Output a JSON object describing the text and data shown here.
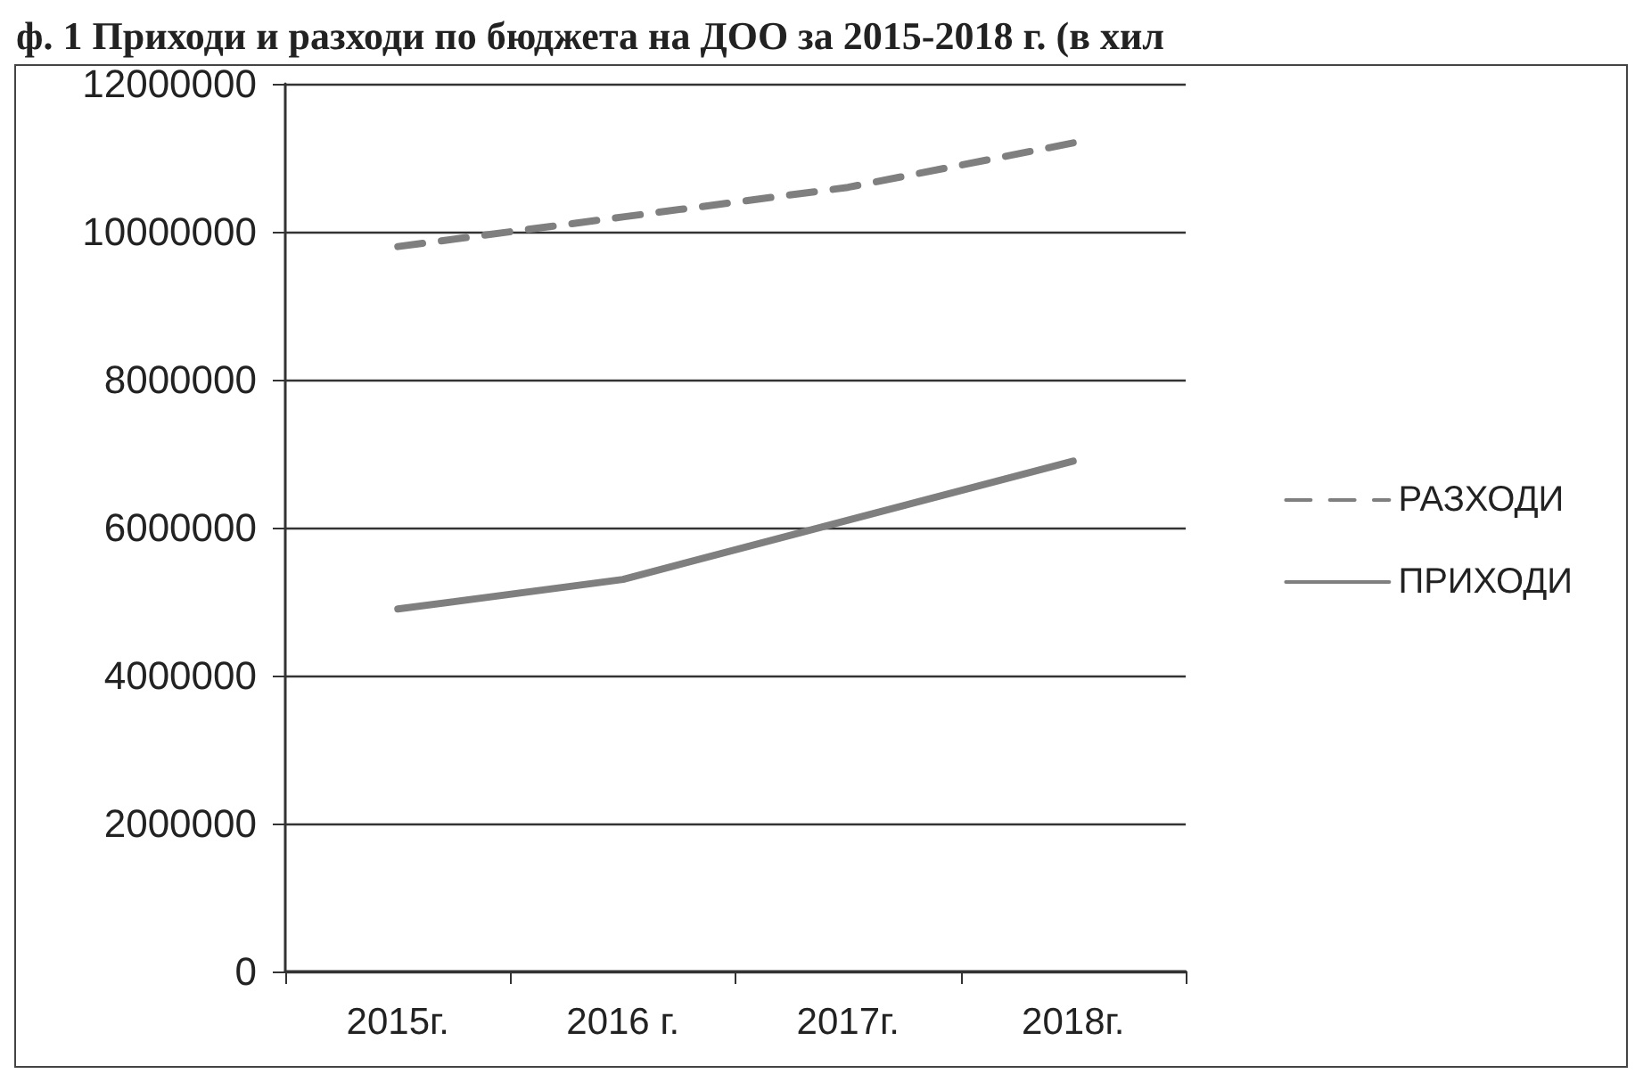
{
  "chart_data": {
    "type": "line",
    "title": "ф. 1 Приходи и разходи по бюджета на ДОО за 2015-2018 г. (в хил",
    "categories": [
      "2015г.",
      "2016 г.",
      "2017г.",
      "2018г."
    ],
    "series": [
      {
        "name": "РАЗХОДИ",
        "color": "#7f7f7f",
        "line_style": "dashed",
        "values": [
          9800000,
          10200000,
          10600000,
          11200000
        ]
      },
      {
        "name": "ПРИХОДИ",
        "color": "#7f7f7f",
        "line_style": "solid",
        "values": [
          4900000,
          5300000,
          6100000,
          6900000
        ]
      }
    ],
    "ylim": [
      0,
      12000000
    ],
    "yticks": [
      0,
      2000000,
      4000000,
      6000000,
      8000000,
      10000000,
      12000000
    ],
    "grid": "y",
    "legend": "right",
    "marker": "none"
  }
}
